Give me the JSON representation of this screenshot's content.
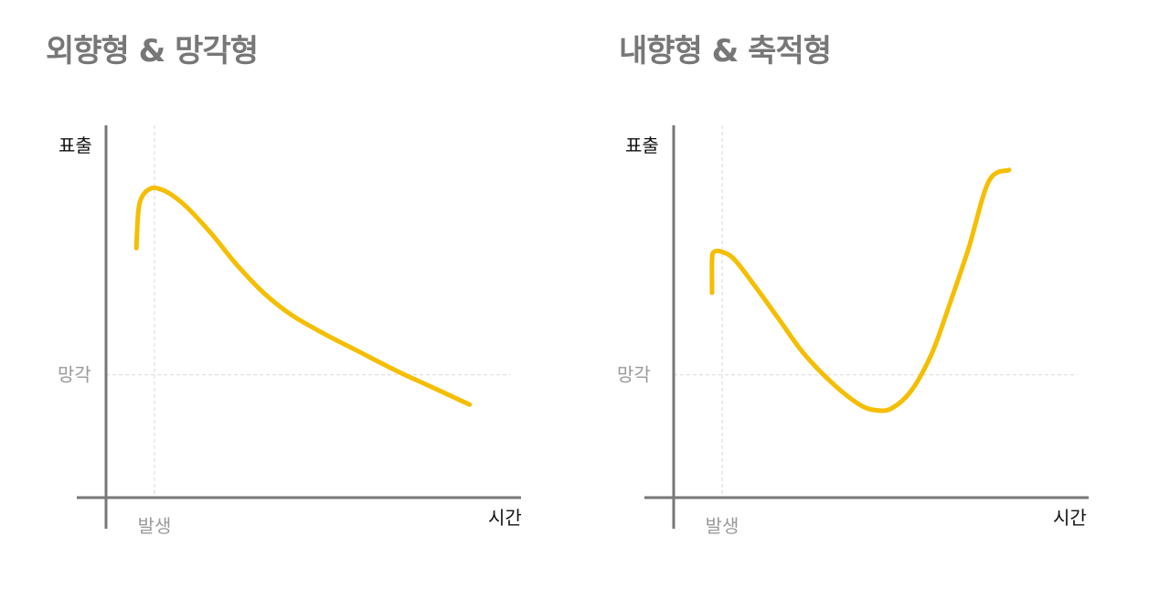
{
  "chart_data": [
    {
      "type": "line",
      "title": "외향형 & 망각형",
      "ylabel": "표출",
      "xlabel": "시간",
      "x_marker_label": "발생",
      "y_marker_label": "망각",
      "color": "#F5BE00",
      "xlim": [
        0,
        10
      ],
      "ylim": [
        0,
        10
      ],
      "x_marker": 1.2,
      "y_marker": 3.3,
      "series": [
        {
          "x": [
            0.75,
            0.8,
            0.9,
            1.1,
            1.3,
            1.6,
            2.0,
            2.6,
            3.2,
            3.9,
            4.6,
            5.4,
            6.3,
            7.2,
            8.0,
            9.0
          ],
          "values": [
            6.7,
            7.7,
            8.1,
            8.3,
            8.3,
            8.15,
            7.8,
            7.1,
            6.3,
            5.5,
            4.9,
            4.4,
            3.9,
            3.4,
            3.0,
            2.5
          ]
        }
      ]
    },
    {
      "type": "line",
      "title": "내향형 & 축적형",
      "ylabel": "표출",
      "xlabel": "시간",
      "x_marker_label": "발생",
      "y_marker_label": "망각",
      "color": "#F5BE00",
      "xlim": [
        0,
        10
      ],
      "ylim": [
        0,
        10
      ],
      "x_marker": 1.2,
      "y_marker": 3.3,
      "series": [
        {
          "x": [
            0.95,
            0.95,
            1.0,
            1.2,
            1.5,
            2.0,
            2.6,
            3.2,
            3.9,
            4.6,
            5.0,
            5.4,
            5.9,
            6.4,
            6.8,
            7.3,
            7.8,
            8.3
          ],
          "values": [
            5.5,
            6.4,
            6.6,
            6.6,
            6.4,
            5.7,
            4.8,
            3.9,
            3.1,
            2.5,
            2.35,
            2.4,
            2.9,
            3.9,
            5.1,
            6.7,
            8.5,
            8.8
          ]
        }
      ]
    }
  ]
}
